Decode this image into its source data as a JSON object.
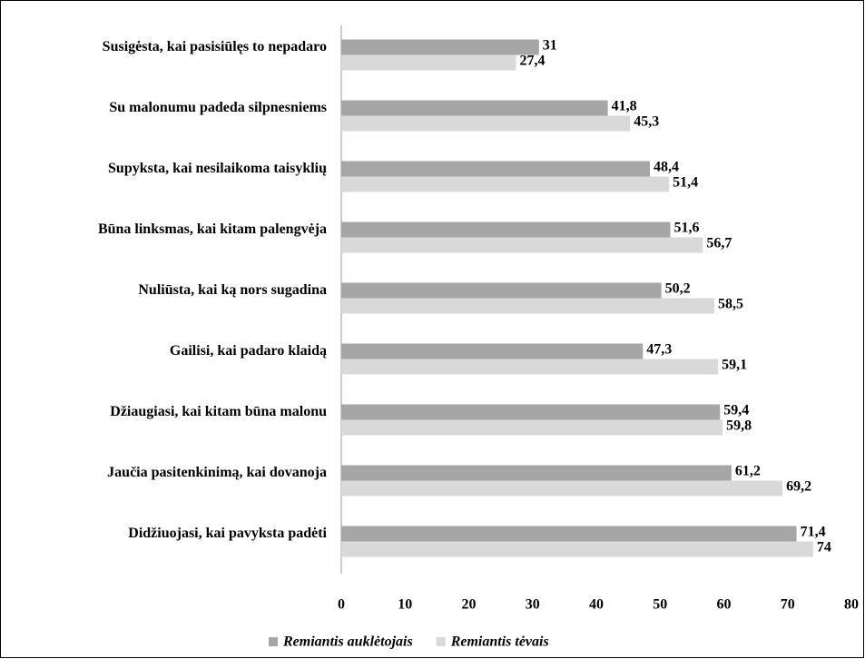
{
  "chart_data": {
    "type": "bar",
    "orientation": "horizontal",
    "categories": [
      "Susigėsta, kai pasisiūlęs to nepadaro",
      "Su malonumu padeda silpnesniems",
      "Supyksta, kai nesilaikoma taisyklių",
      "Būna linksmas, kai kitam palengvėja",
      "Nuliūsta, kai ką nors sugadina",
      "Gailisi, kai padaro klaidą",
      "Džiaugiasi, kai kitam būna malonu",
      "Jaučia pasitenkinimą, kai dovanoja",
      "Didžiuojasi, kai pavyksta padėti"
    ],
    "series": [
      {
        "name": "Remiantis auklėtojais",
        "color": "#a6a6a6",
        "values": [
          31,
          41.8,
          48.4,
          51.6,
          50.2,
          47.3,
          59.4,
          61.2,
          71.4
        ],
        "value_labels": [
          "31",
          "41,8",
          "48,4",
          "51,6",
          "50,2",
          "47,3",
          "59,4",
          "61,2",
          "71,4"
        ]
      },
      {
        "name": "Remiantis tėvais",
        "color": "#d9d9d9",
        "values": [
          27.4,
          45.3,
          51.4,
          56.7,
          58.5,
          59.1,
          59.8,
          69.2,
          74
        ],
        "value_labels": [
          "27,4",
          "45,3",
          "51,4",
          "56,7",
          "58,5",
          "59,1",
          "59,8",
          "69,2",
          "74"
        ]
      }
    ],
    "xlim": [
      0,
      80
    ],
    "xticks": [
      0,
      10,
      20,
      30,
      40,
      50,
      60,
      70,
      80
    ],
    "grid": false,
    "legend": "bottom"
  }
}
